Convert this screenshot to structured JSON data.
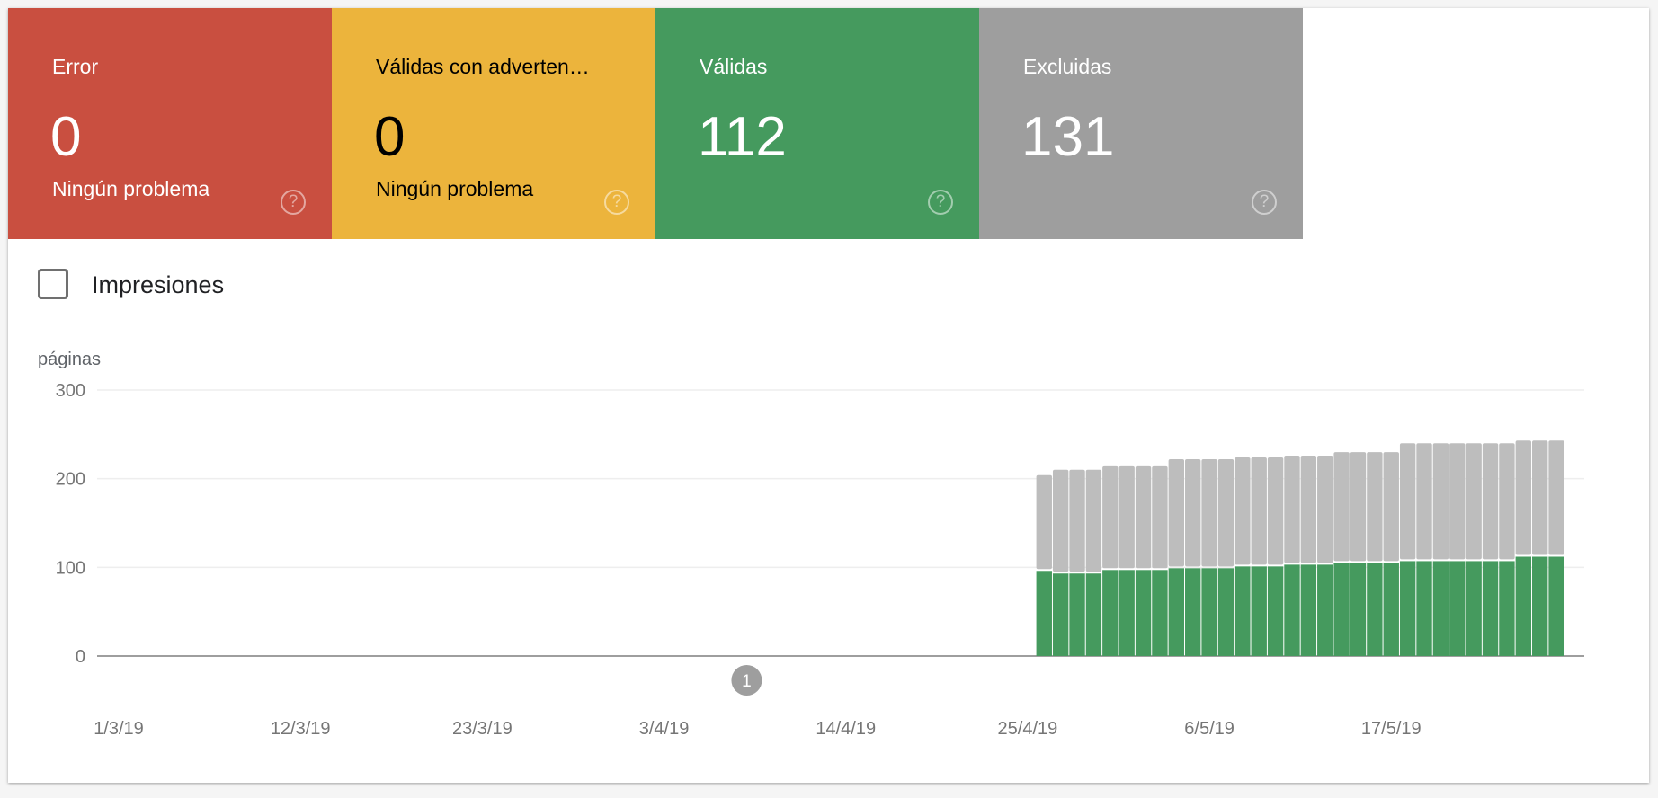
{
  "cards": [
    {
      "title": "Error",
      "value": "0",
      "subtitle": "Ningún problema",
      "color": "#c94f40",
      "help": "?"
    },
    {
      "title": "Válidas con adverten…",
      "value": "0",
      "subtitle": "Ningún problema",
      "color": "#ecb43c",
      "help": "?"
    },
    {
      "title": "Válidas",
      "value": "112",
      "subtitle": "",
      "color": "#459a5e",
      "help": "?"
    },
    {
      "title": "Excluidas",
      "value": "131",
      "subtitle": "",
      "color": "#9e9e9e",
      "help": "?"
    }
  ],
  "impressions_checkbox": {
    "label": "Impresiones",
    "checked": false
  },
  "chart_data": {
    "type": "bar",
    "stacked": true,
    "ylabel": "páginas",
    "ylim": [
      0,
      300
    ],
    "yticks": [
      0,
      100,
      200,
      300
    ],
    "grid": true,
    "x_start": "1/3/19",
    "xtick_labels": [
      "1/3/19",
      "12/3/19",
      "23/3/19",
      "3/4/19",
      "14/4/19",
      "25/4/19",
      "6/5/19",
      "17/5/19"
    ],
    "xtick_day_index": [
      0,
      11,
      22,
      33,
      44,
      55,
      66,
      77
    ],
    "first_bar_day_index": 56,
    "series": [
      {
        "name": "Válidas",
        "color": "#459a5e",
        "values": [
          96,
          93,
          93,
          93,
          97,
          97,
          97,
          97,
          99,
          99,
          99,
          99,
          101,
          101,
          101,
          103,
          103,
          103,
          105,
          105,
          105,
          105,
          107,
          107,
          107,
          107,
          107,
          107,
          107,
          112,
          112,
          112
        ]
      },
      {
        "name": "Excluidas",
        "color": "#bdbdbd",
        "values": [
          108,
          117,
          117,
          117,
          117,
          117,
          117,
          117,
          123,
          123,
          123,
          123,
          123,
          123,
          123,
          123,
          123,
          123,
          125,
          125,
          125,
          125,
          133,
          133,
          133,
          133,
          133,
          133,
          133,
          131,
          131,
          131
        ]
      }
    ],
    "annotations": [
      {
        "label": "1",
        "day_index": 38
      }
    ]
  }
}
